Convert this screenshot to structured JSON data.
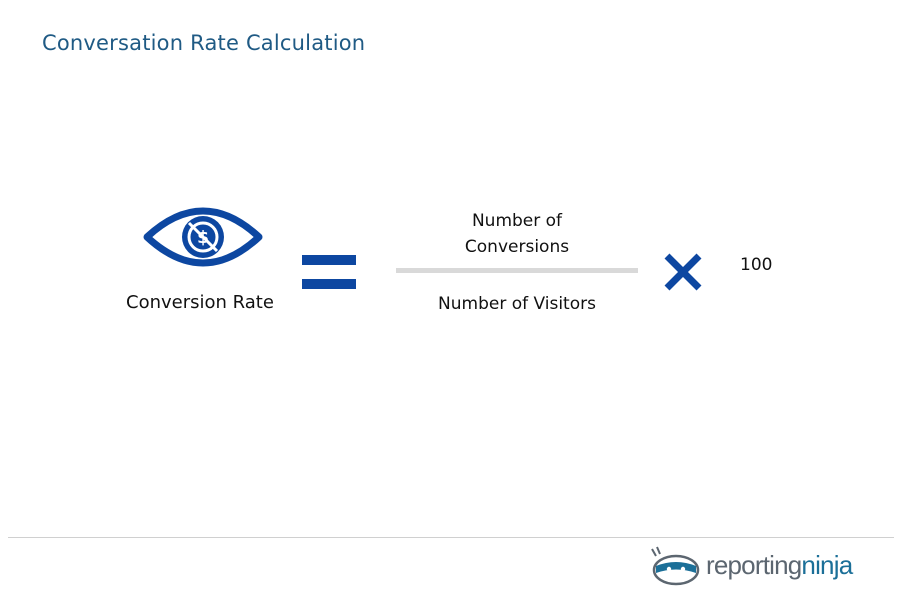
{
  "header": {
    "title": "Conversation Rate Calculation"
  },
  "formula": {
    "lhs_label": "Conversion Rate",
    "numerator_line1": "Number of",
    "numerator_line2": "Conversions",
    "denominator": "Number of Visitors",
    "multiplier": "100"
  },
  "icons": {
    "lhs": "eye-dollar-icon",
    "equals": "equals-icon",
    "times": "multiply-icon"
  },
  "colors": {
    "title": "#1f5a84",
    "accent": "#0d47a1",
    "fraction_bar": "#d9d9d9"
  },
  "footer": {
    "brand_part1": "reporting",
    "brand_part2": "ninja"
  }
}
